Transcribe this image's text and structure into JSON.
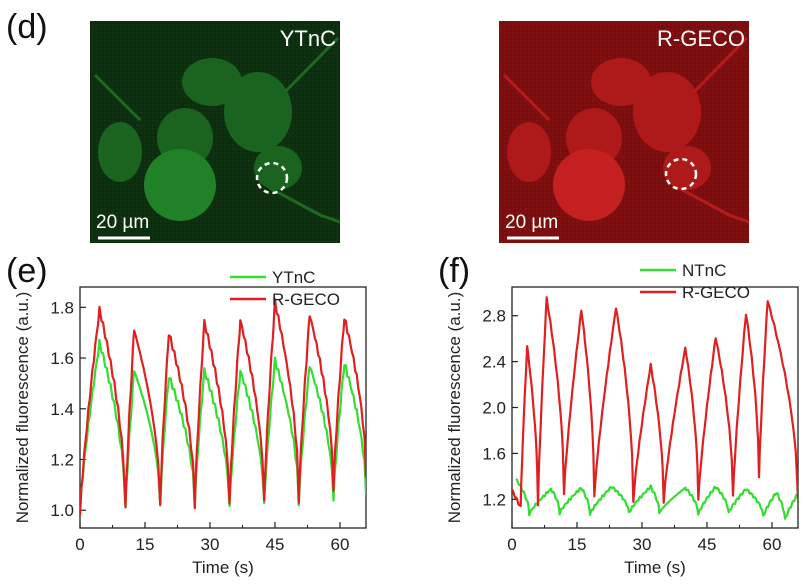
{
  "panel_labels": {
    "d": "(d)",
    "e": "(e)",
    "f": "(f)"
  },
  "images": [
    {
      "label": "YTnC",
      "scalebar": "20 µm",
      "tint": "#1f8a2a",
      "bg": "#0a2a0c"
    },
    {
      "label": "R-GECO",
      "scalebar": "20 µm",
      "tint": "#d22222",
      "bg": "#7a0d0d"
    }
  ],
  "colors": {
    "green": "#33dd33",
    "red": "#e02020"
  },
  "chart_data": [
    {
      "type": "line",
      "xlabel": "Time (s)",
      "ylabel": "Normalized fluorescence (a.u.)",
      "xlim": [
        0,
        66
      ],
      "ylim": [
        0.93,
        1.88
      ],
      "xticks": [
        0,
        15,
        30,
        45,
        60
      ],
      "yticks": [
        1.0,
        1.2,
        1.4,
        1.6,
        1.8
      ],
      "ytick_labels": [
        "1.0",
        "1.2",
        "1.4",
        "1.6",
        "1.8"
      ],
      "series": [
        {
          "name": "YTnC",
          "color": "#33dd33",
          "peaks": [
            [
              4.5,
              1.66
            ],
            [
              12.5,
              1.55
            ],
            [
              20.5,
              1.53
            ],
            [
              28.7,
              1.55
            ],
            [
              37,
              1.55
            ],
            [
              45,
              1.59
            ],
            [
              53,
              1.57
            ],
            [
              61,
              1.58
            ]
          ],
          "troughs": [
            [
              0,
              1.0
            ],
            [
              10.5,
              1.0
            ],
            [
              18.5,
              1.02
            ],
            [
              26.5,
              1.02
            ],
            [
              34.5,
              1.01
            ],
            [
              42.5,
              1.02
            ],
            [
              50.5,
              1.03
            ],
            [
              58.5,
              1.04
            ],
            [
              66,
              1.06
            ]
          ]
        },
        {
          "name": "R-GECO",
          "color": "#e02020",
          "peaks": [
            [
              4.5,
              1.79
            ],
            [
              12.5,
              1.71
            ],
            [
              20.5,
              1.7
            ],
            [
              28.7,
              1.74
            ],
            [
              37,
              1.75
            ],
            [
              45,
              1.82
            ],
            [
              53,
              1.77
            ],
            [
              61,
              1.76
            ]
          ],
          "troughs": [
            [
              0,
              0.98
            ],
            [
              10.5,
              1.0
            ],
            [
              18.5,
              1.02
            ],
            [
              26.5,
              1.02
            ],
            [
              34.5,
              1.02
            ],
            [
              42.5,
              1.03
            ],
            [
              50.5,
              1.04
            ],
            [
              58.5,
              1.08
            ],
            [
              66,
              1.13
            ]
          ]
        }
      ]
    },
    {
      "type": "line",
      "xlabel": "Time (s)",
      "ylabel": "Normalized fluorescence (a.u.)",
      "xlim": [
        0,
        66
      ],
      "ylim": [
        0.95,
        3.05
      ],
      "xticks": [
        0,
        15,
        30,
        45,
        60
      ],
      "yticks": [
        1.2,
        1.6,
        2.0,
        2.4,
        2.8
      ],
      "ytick_labels": [
        "1.2",
        "1.6",
        "2.0",
        "2.4",
        "2.8"
      ],
      "series": [
        {
          "name": "NTnC",
          "color": "#33dd33",
          "peaks": [
            [
              1,
              1.37
            ],
            [
              9,
              1.29
            ],
            [
              16,
              1.3
            ],
            [
              23,
              1.31
            ],
            [
              32,
              1.31
            ],
            [
              40,
              1.3
            ],
            [
              47,
              1.31
            ],
            [
              54,
              1.29
            ],
            [
              61,
              1.26
            ],
            [
              66,
              1.25
            ]
          ],
          "troughs": [
            [
              4,
              1.07
            ],
            [
              11,
              1.08
            ],
            [
              18,
              1.07
            ],
            [
              27,
              1.08
            ],
            [
              34,
              1.08
            ],
            [
              43,
              1.07
            ],
            [
              50,
              1.08
            ],
            [
              58,
              1.05
            ],
            [
              63,
              1.02
            ]
          ]
        },
        {
          "name": "R-GECO",
          "color": "#e02020",
          "peaks": [
            [
              3.5,
              2.53
            ],
            [
              8,
              2.95
            ],
            [
              16,
              2.85
            ],
            [
              24,
              2.87
            ],
            [
              32,
              2.37
            ],
            [
              40,
              2.52
            ],
            [
              47,
              2.61
            ],
            [
              54,
              2.82
            ],
            [
              59,
              2.93
            ]
          ],
          "troughs": [
            [
              0,
              1.28
            ],
            [
              2,
              1.13
            ],
            [
              6,
              1.15
            ],
            [
              12,
              1.25
            ],
            [
              19,
              1.22
            ],
            [
              28,
              1.18
            ],
            [
              35,
              1.18
            ],
            [
              43,
              1.2
            ],
            [
              51,
              1.22
            ],
            [
              57,
              1.38
            ],
            [
              66,
              1.2
            ]
          ]
        }
      ]
    }
  ]
}
